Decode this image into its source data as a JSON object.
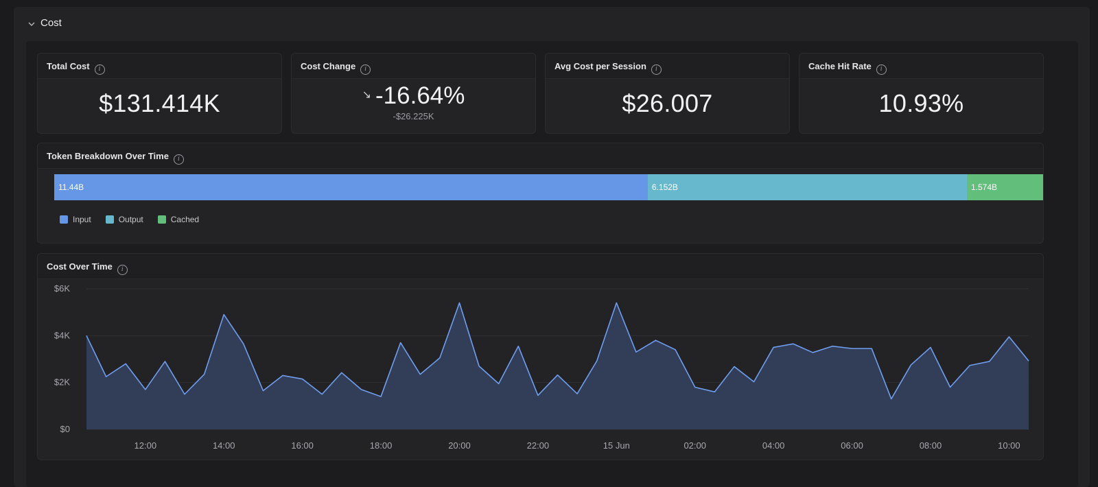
{
  "section": {
    "title": "Cost"
  },
  "kpis": {
    "total_cost": {
      "label": "Total Cost",
      "value": "$131.414K"
    },
    "cost_change": {
      "label": "Cost Change",
      "value": "-16.64%",
      "delta": "-$26.225K",
      "arrow": "↘"
    },
    "avg_cost": {
      "label": "Avg Cost per Session",
      "value": "$26.007"
    },
    "cache_hit": {
      "label": "Cache Hit Rate",
      "value": "10.93%"
    }
  },
  "token_breakdown": {
    "title": "Token Breakdown Over Time",
    "segments": [
      {
        "name": "Input",
        "label": "11.44B",
        "value": 11.44,
        "color": "#6597e6"
      },
      {
        "name": "Output",
        "label": "6.152B",
        "value": 6.152,
        "color": "#67b8cc"
      },
      {
        "name": "Cached",
        "label": "1.574B",
        "value": 1.574,
        "color": "#62bf7b"
      }
    ]
  },
  "colors": {
    "line": "#6f9ef0",
    "area": "#34405a",
    "grid": "#303034",
    "axis_text": "#a8a8ae"
  },
  "cost_over_time": {
    "title": "Cost Over Time"
  },
  "chart_data": {
    "type": "area",
    "title": "Cost Over Time",
    "xlabel": "",
    "ylabel": "",
    "ylim": [
      0,
      6000
    ],
    "yticks": [
      {
        "value": 0,
        "label": "$0"
      },
      {
        "value": 2000,
        "label": "$2K"
      },
      {
        "value": 4000,
        "label": "$4K"
      },
      {
        "value": 6000,
        "label": "$6K"
      }
    ],
    "x_start": "10:30",
    "x_interval_minutes": 30,
    "xticks": [
      {
        "x": "12:00",
        "label": "12:00"
      },
      {
        "x": "14:00",
        "label": "14:00"
      },
      {
        "x": "16:00",
        "label": "16:00"
      },
      {
        "x": "18:00",
        "label": "18:00"
      },
      {
        "x": "20:00",
        "label": "20:00"
      },
      {
        "x": "22:00",
        "label": "22:00"
      },
      {
        "x": "00:00",
        "label": "15 Jun"
      },
      {
        "x": "02:00",
        "label": "02:00"
      },
      {
        "x": "04:00",
        "label": "04:00"
      },
      {
        "x": "06:00",
        "label": "06:00"
      },
      {
        "x": "08:00",
        "label": "08:00"
      },
      {
        "x": "10:00",
        "label": "10:00"
      }
    ],
    "grid": true,
    "series": [
      {
        "values": [
          4000,
          2250,
          2800,
          1700,
          2900,
          1500,
          2350,
          4900,
          3650,
          1650,
          2300,
          2150,
          1500,
          2420,
          1700,
          1400,
          3700,
          2350,
          3050,
          5400,
          2700,
          1950,
          3550,
          1450,
          2320,
          1520,
          2920,
          5400,
          3300,
          3800,
          3400,
          1800,
          1600,
          2680,
          2030,
          3500,
          3650,
          3280,
          3550,
          3450,
          3450,
          1300,
          2750,
          3500,
          1800,
          2730,
          2900,
          3950,
          2920
        ]
      }
    ]
  }
}
